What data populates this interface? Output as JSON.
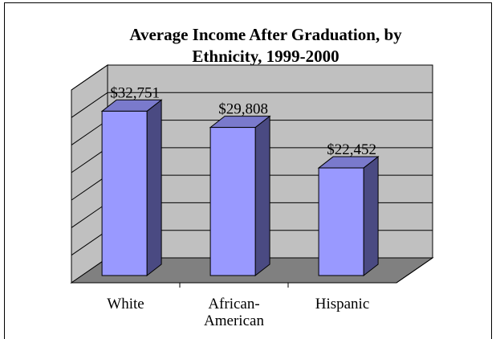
{
  "chart_data": {
    "type": "bar",
    "title_lines": [
      "Average Income After Graduation, by",
      "Ethnicity, 1999-2000"
    ],
    "categories": [
      [
        "White"
      ],
      [
        "African-",
        "American"
      ],
      [
        "Hispanic"
      ]
    ],
    "values": [
      32751,
      29808,
      22452
    ],
    "value_labels": [
      "$32,751",
      "$29,808",
      "$22,452"
    ],
    "ylim": [
      0,
      35000
    ],
    "grid": true,
    "legend": "none",
    "three_d": true,
    "colors": {
      "bar_front": "#9999ff",
      "bar_side": "#4a4a82",
      "bar_top": "#7a7acc",
      "wall": "#c0c0c0",
      "floor": "#808080",
      "gridline": "#000000"
    }
  }
}
